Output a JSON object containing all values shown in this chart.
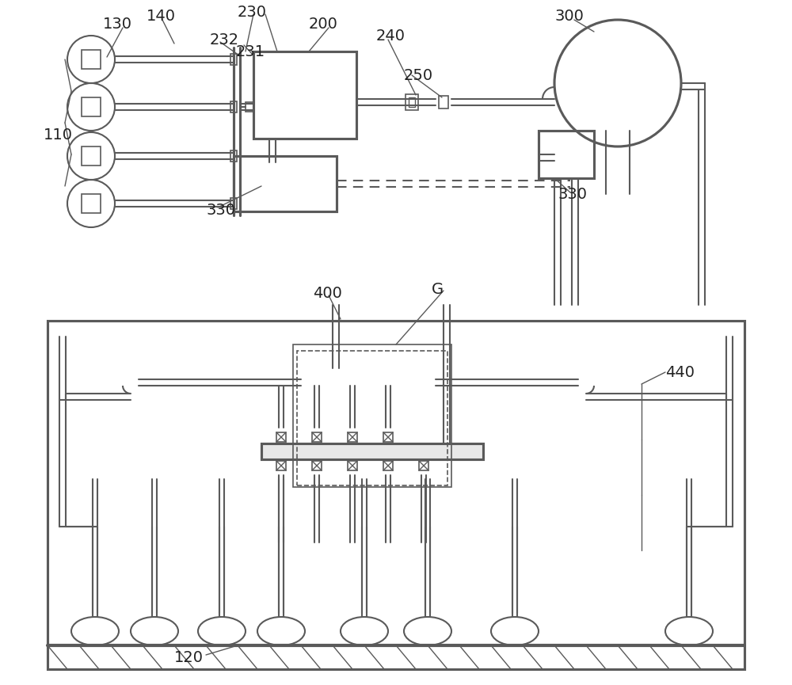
{
  "bg_color": "#f0f0f0",
  "line_color": "#5a5a5a",
  "line_width": 1.5,
  "thick_line": 2.5,
  "label_fontsize": 13,
  "label_color": "#222222"
}
